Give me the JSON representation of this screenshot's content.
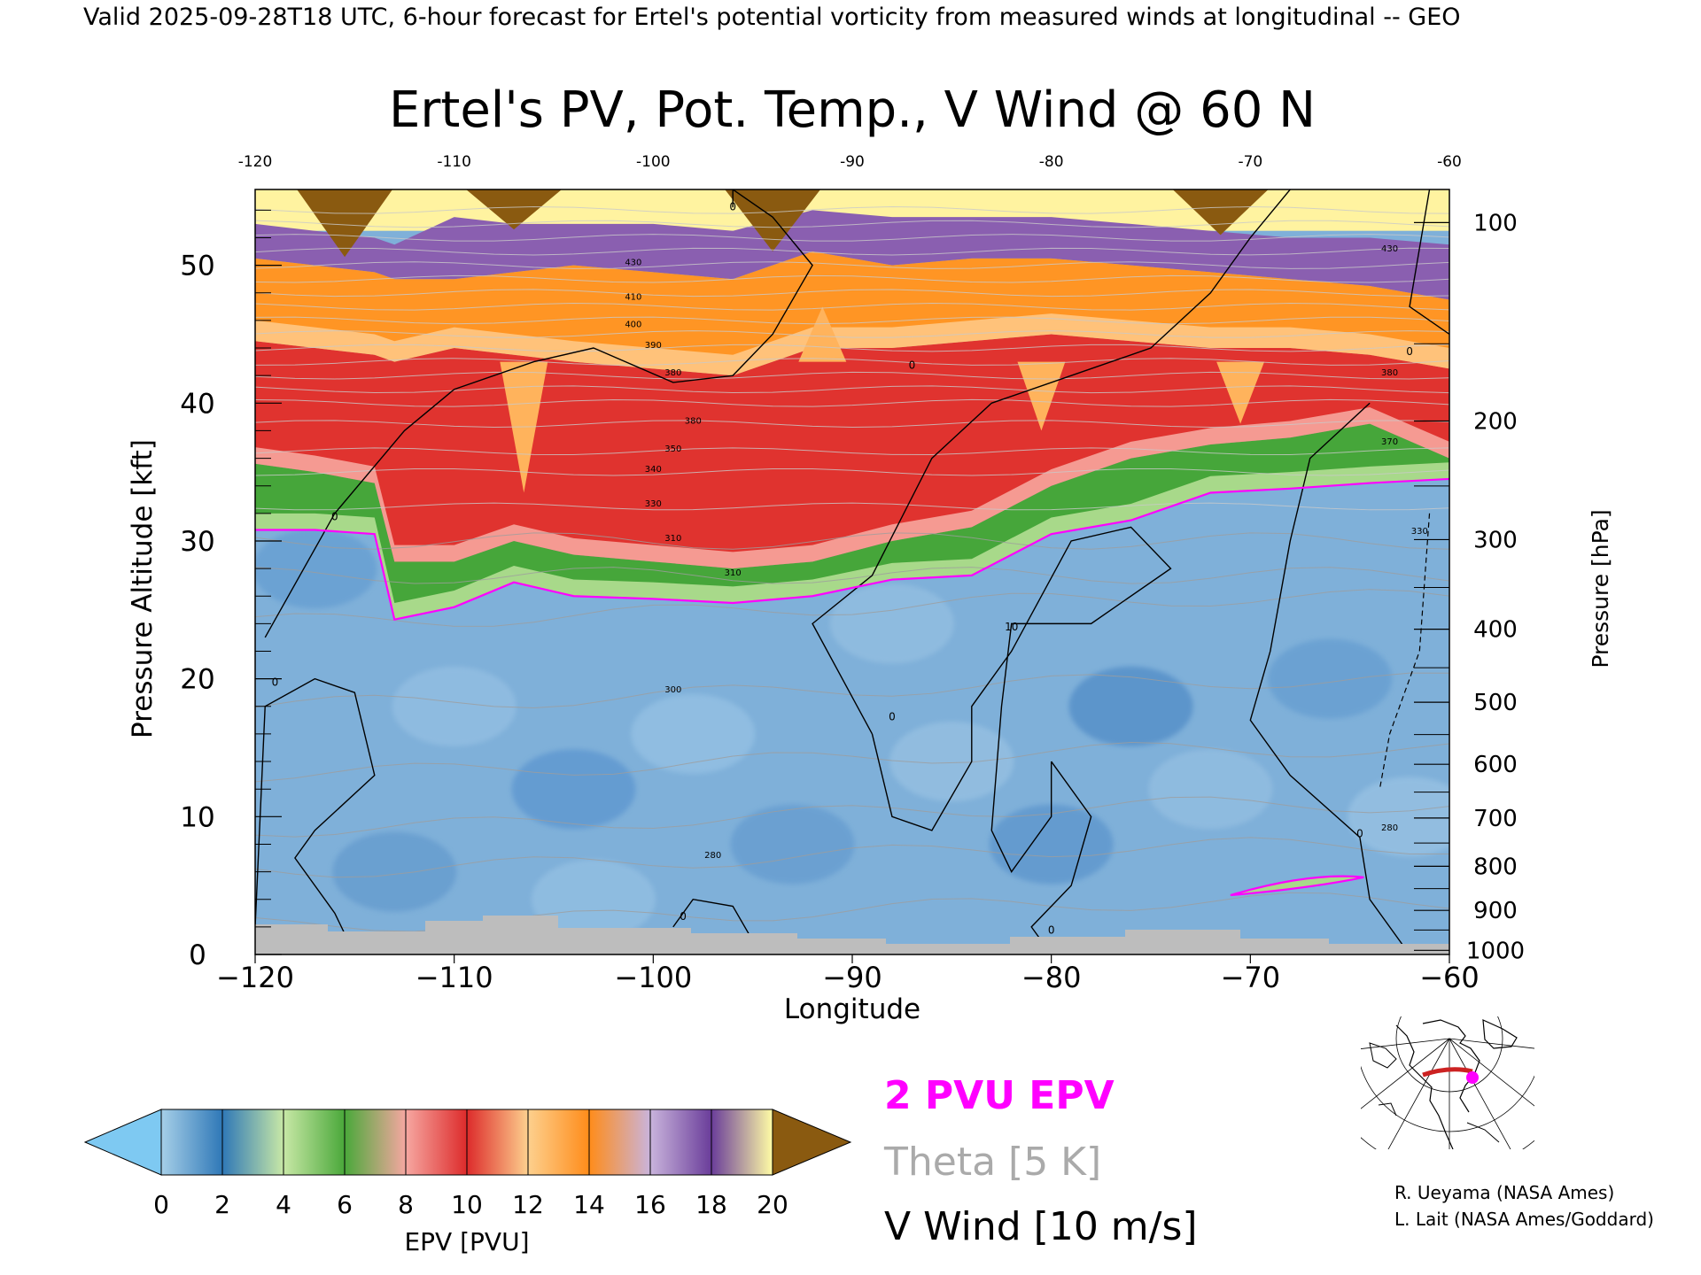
{
  "header": {
    "valid_line": "Valid 2025-09-28T18 UTC, 6-hour forecast for Ertel's potential vorticity from measured winds at longitudinal -- GEO"
  },
  "chart_data": {
    "type": "heatmap",
    "title": "Ertel's PV, Pot. Temp., V Wind @ 60 N",
    "xlabel": "Longitude",
    "ylabel": "Pressure Altitude [kft]",
    "y2label": "Pressure [hPa]",
    "xlim": [
      -120,
      -60
    ],
    "ylim": [
      0,
      55.5
    ],
    "x_ticks": [
      -120,
      -110,
      -100,
      -90,
      -80,
      -70,
      -60
    ],
    "x_tick_labels": [
      "−120",
      "−110",
      "−100",
      "−90",
      "−80",
      "−70",
      "−60"
    ],
    "top_tick_labels": [
      "-120",
      "-110",
      "-100",
      "-90",
      "-80",
      "-70",
      "-60"
    ],
    "y_ticks": [
      0,
      10,
      20,
      30,
      40,
      50
    ],
    "y_tick_labels": [
      "0",
      "10",
      "20",
      "30",
      "40",
      "50"
    ],
    "pressure_ticks": [
      {
        "hpa": 100,
        "kft": 53.1
      },
      {
        "hpa": 200,
        "kft": 38.7
      },
      {
        "hpa": 300,
        "kft": 30.1
      },
      {
        "hpa": 400,
        "kft": 23.6
      },
      {
        "hpa": 500,
        "kft": 18.3
      },
      {
        "hpa": 600,
        "kft": 13.8
      },
      {
        "hpa": 700,
        "kft": 9.9
      },
      {
        "hpa": 800,
        "kft": 6.4
      },
      {
        "hpa": 900,
        "kft": 3.2
      },
      {
        "hpa": 1000,
        "kft": 0.3
      }
    ],
    "pv_layers_top_kft": [
      {
        "x": -120,
        "tropopause": 30.8,
        "green_top": 35.6,
        "red_top": 44.5,
        "orange_top": 50.5,
        "purple_top": 53.0
      },
      {
        "x": -117,
        "tropopause": 30.8,
        "green_top": 35.0,
        "red_top": 44.0,
        "orange_top": 50.0,
        "purple_top": 52.5
      },
      {
        "x": -114,
        "tropopause": 30.5,
        "green_top": 34.2,
        "red_top": 43.5,
        "orange_top": 49.5,
        "purple_top": 52.0
      },
      {
        "x": -113,
        "tropopause": 24.3,
        "green_top": 28.5,
        "red_top": 43.0,
        "orange_top": 49.0,
        "purple_top": 51.5
      },
      {
        "x": -110,
        "tropopause": 25.2,
        "green_top": 28.5,
        "red_top": 44.0,
        "orange_top": 49.0,
        "purple_top": 53.5
      },
      {
        "x": -107,
        "tropopause": 27.0,
        "green_top": 30.0,
        "red_top": 43.5,
        "orange_top": 49.5,
        "purple_top": 53.0
      },
      {
        "x": -104,
        "tropopause": 26.0,
        "green_top": 29.0,
        "red_top": 43.0,
        "orange_top": 50.0,
        "purple_top": 53.0
      },
      {
        "x": -100,
        "tropopause": 25.8,
        "green_top": 28.5,
        "red_top": 42.5,
        "orange_top": 49.5,
        "purple_top": 53.0
      },
      {
        "x": -96,
        "tropopause": 25.5,
        "green_top": 28.0,
        "red_top": 42.0,
        "orange_top": 49.0,
        "purple_top": 52.5
      },
      {
        "x": -92,
        "tropopause": 26.0,
        "green_top": 28.5,
        "red_top": 44.0,
        "orange_top": 51.0,
        "purple_top": 54.0
      },
      {
        "x": -88,
        "tropopause": 27.2,
        "green_top": 30.0,
        "red_top": 44.0,
        "orange_top": 50.0,
        "purple_top": 53.5
      },
      {
        "x": -84,
        "tropopause": 27.5,
        "green_top": 31.0,
        "red_top": 44.5,
        "orange_top": 50.5,
        "purple_top": 53.5
      },
      {
        "x": -80,
        "tropopause": 30.5,
        "green_top": 34.0,
        "red_top": 45.0,
        "orange_top": 50.5,
        "purple_top": 53.5
      },
      {
        "x": -76,
        "tropopause": 31.5,
        "green_top": 36.0,
        "red_top": 44.5,
        "orange_top": 50.0,
        "purple_top": 53.0
      },
      {
        "x": -72,
        "tropopause": 33.5,
        "green_top": 37.0,
        "red_top": 44.0,
        "orange_top": 49.5,
        "purple_top": 52.5
      },
      {
        "x": -68,
        "tropopause": 33.8,
        "green_top": 37.5,
        "red_top": 44.0,
        "orange_top": 49.0,
        "purple_top": 52.0
      },
      {
        "x": -64,
        "tropopause": 34.2,
        "green_top": 38.5,
        "red_top": 43.5,
        "orange_top": 48.5,
        "purple_top": 52.0
      },
      {
        "x": -60,
        "tropopause": 34.5,
        "green_top": 36.0,
        "red_top": 42.5,
        "orange_top": 47.5,
        "purple_top": 51.5
      }
    ],
    "theta_contour_labels": [
      {
        "x": -101,
        "y": 50.0,
        "label": "430"
      },
      {
        "x": -101,
        "y": 47.5,
        "label": "410"
      },
      {
        "x": -101,
        "y": 45.5,
        "label": "400"
      },
      {
        "x": -100,
        "y": 44.0,
        "label": "390"
      },
      {
        "x": -99,
        "y": 42.0,
        "label": "380"
      },
      {
        "x": -98,
        "y": 38.5,
        "label": "380"
      },
      {
        "x": -99,
        "y": 36.5,
        "label": "350"
      },
      {
        "x": -100,
        "y": 35.0,
        "label": "340"
      },
      {
        "x": -100,
        "y": 32.5,
        "label": "330"
      },
      {
        "x": -99,
        "y": 30.0,
        "label": "310"
      },
      {
        "x": -96,
        "y": 27.5,
        "label": "310"
      },
      {
        "x": -99,
        "y": 19.0,
        "label": "300"
      },
      {
        "x": -97,
        "y": 7.0,
        "label": "280"
      },
      {
        "x": -63,
        "y": 9.0,
        "label": "280"
      },
      {
        "x": -63,
        "y": 42.0,
        "label": "380"
      },
      {
        "x": -63,
        "y": 37.0,
        "label": "370"
      },
      {
        "x": -61.5,
        "y": 30.5,
        "label": "330"
      },
      {
        "x": -63,
        "y": 51.0,
        "label": "430"
      }
    ],
    "vwind_contour_labels": [
      {
        "x": -96,
        "y": 54.0,
        "label": "0"
      },
      {
        "x": -119,
        "y": 19.5,
        "label": "0"
      },
      {
        "x": -116,
        "y": 31.5,
        "label": "0"
      },
      {
        "x": -88,
        "y": 17.0,
        "label": "0"
      },
      {
        "x": -80,
        "y": 1.5,
        "label": "0"
      },
      {
        "x": -98.5,
        "y": 2.5,
        "label": "0"
      },
      {
        "x": -64.5,
        "y": 8.5,
        "label": "0"
      },
      {
        "x": -82,
        "y": 23.5,
        "label": "10"
      },
      {
        "x": -62,
        "y": 43.5,
        "label": "0"
      },
      {
        "x": -87,
        "y": 42.5,
        "label": "0"
      }
    ],
    "colorbar": {
      "label": "EPV [PVU]",
      "range": [
        0,
        20
      ],
      "tick_values": [
        0,
        2,
        4,
        6,
        8,
        10,
        12,
        14,
        16,
        18,
        20
      ],
      "tick_labels": [
        "0",
        "2",
        "4",
        "6",
        "8",
        "10",
        "12",
        "14",
        "16",
        "18",
        "20"
      ],
      "under_color": "#7ec9f2",
      "over_color": "#8a5a10",
      "stops": [
        "#a6cfe8",
        "#2f78b7",
        "#c8e8a6",
        "#4aa83a",
        "#f6a7a1",
        "#dd2b2b",
        "#fdd08e",
        "#ff8c1a",
        "#c9b4dc",
        "#6a3d9a",
        "#fffca5"
      ]
    },
    "legend": {
      "placement": "bottom-center",
      "entries": [
        {
          "label": "2 PVU EPV",
          "color": "#ff00ff"
        },
        {
          "label": "Theta [5 K]",
          "color": "#aaaaaa"
        },
        {
          "label": "V Wind [10 m/s]",
          "color": "#000000"
        }
      ]
    }
  },
  "credits": {
    "line1": "R. Ueyama (NASA Ames)",
    "line2": "L. Lait (NASA Ames/Goddard)"
  },
  "inset_map": {
    "icon": "polar-map-icon",
    "section_color": "#cc2222",
    "marker_color": "#ff00ff"
  }
}
